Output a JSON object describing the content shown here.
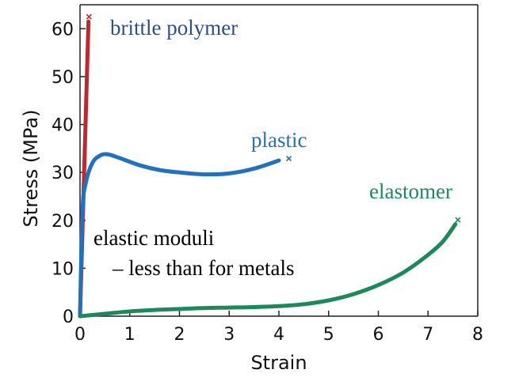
{
  "chart_data": {
    "type": "line",
    "xlabel": "Strain",
    "ylabel": "Stress (MPa)",
    "xlim": [
      0,
      8
    ],
    "ylim": [
      0,
      65
    ],
    "xticks": [
      "0",
      "1",
      "2",
      "3",
      "4",
      "5",
      "6",
      "7",
      "8"
    ],
    "yticks": [
      "0",
      "10",
      "20",
      "30",
      "40",
      "50",
      "60"
    ],
    "grid": false,
    "series": [
      {
        "name": "brittle polymer",
        "color": "#c0282d",
        "points": [
          [
            0,
            0
          ],
          [
            0.17,
            61.5
          ]
        ],
        "failure": [
          0.18,
          62.5
        ]
      },
      {
        "name": "plastic",
        "color": "#1f72c2",
        "points": [
          [
            0,
            0
          ],
          [
            0.05,
            22
          ],
          [
            0.12,
            28
          ],
          [
            0.25,
            32
          ],
          [
            0.4,
            33.5
          ],
          [
            0.55,
            33.8
          ],
          [
            0.8,
            33
          ],
          [
            1.2,
            31.5
          ],
          [
            1.6,
            30.5
          ],
          [
            2.0,
            30
          ],
          [
            2.5,
            29.6
          ],
          [
            3.0,
            29.8
          ],
          [
            3.5,
            30.8
          ],
          [
            4.0,
            32.5
          ]
        ],
        "failure": [
          4.2,
          32.9
        ]
      },
      {
        "name": "elastomer",
        "color": "#1a8a5a",
        "points": [
          [
            0,
            0
          ],
          [
            0.5,
            0.5
          ],
          [
            1,
            1
          ],
          [
            1.5,
            1.3
          ],
          [
            2,
            1.5
          ],
          [
            2.5,
            1.7
          ],
          [
            3,
            1.8
          ],
          [
            3.5,
            1.9
          ],
          [
            4,
            2.1
          ],
          [
            4.5,
            2.5
          ],
          [
            5,
            3.3
          ],
          [
            5.5,
            4.6
          ],
          [
            6,
            6.5
          ],
          [
            6.5,
            9.1
          ],
          [
            7,
            12.8
          ],
          [
            7.3,
            15.6
          ],
          [
            7.55,
            19.2
          ]
        ],
        "failure": [
          7.6,
          20.1
        ]
      }
    ],
    "annotations": [
      {
        "text": "elastic moduli",
        "x": 0.27,
        "y": 17
      },
      {
        "text": "–  less than for metals",
        "x": 0.65,
        "y": 10
      }
    ]
  }
}
